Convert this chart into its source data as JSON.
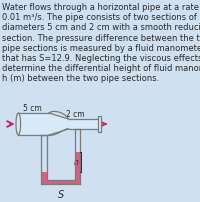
{
  "bg_color": "#cfe0f0",
  "text_color": "#2a2a2a",
  "pipe_color": "#7a7a7a",
  "pipe_fill": "#d8eaf8",
  "fluid_color": "#d9507a",
  "arrow_color": "#cc2266",
  "label_5cm": "5 cm",
  "label_2cm": "2 cm",
  "label_h": "h",
  "label_s": "S",
  "title_lines": [
    "Water flows through a horizontal pipe at a rate of",
    "0.01 m³/s. The pipe consists of two sections of",
    "diameters 5 cm and 2 cm with a smooth reducing",
    "section. The pressure difference between the two",
    "pipe sections is measured by a fluid manometer",
    "that has S=12.9. Neglecting the viscous effects,",
    "determine the differential height of fluid manometer",
    "h (m) between the two pipe sections."
  ],
  "figsize": [
    2.0,
    2.03
  ],
  "dpi": 100
}
